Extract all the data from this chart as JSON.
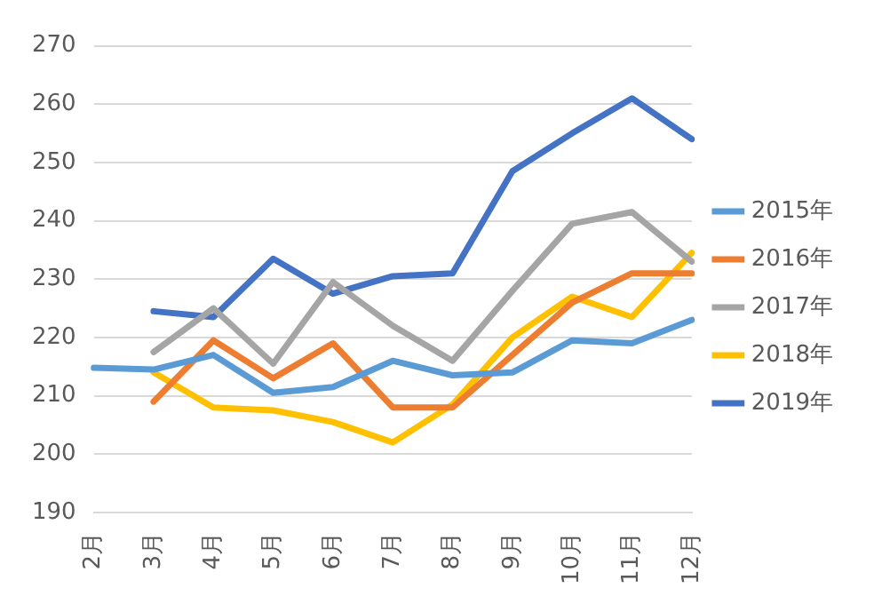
{
  "chart_data": {
    "type": "line",
    "categories": [
      "2月",
      "3月",
      "4月",
      "5月",
      "6月",
      "7月",
      "8月",
      "9月",
      "10月",
      "11月",
      "12月"
    ],
    "series": [
      {
        "name": "2015年",
        "color": "#5b9bd5",
        "values": [
          214.8,
          214.5,
          217,
          210.5,
          211.5,
          216,
          213.5,
          214,
          219.5,
          219,
          223
        ]
      },
      {
        "name": "2016年",
        "color": "#ed7d31",
        "values": [
          null,
          209,
          219.5,
          213,
          219,
          208,
          208,
          217,
          226,
          231,
          231
        ]
      },
      {
        "name": "2017年",
        "color": "#a5a5a5",
        "values": [
          null,
          217.5,
          225,
          215.5,
          229.5,
          222,
          216,
          228,
          239.5,
          241.5,
          233
        ]
      },
      {
        "name": "2018年",
        "color": "#ffc000",
        "values": [
          null,
          214,
          208,
          207.5,
          205.5,
          202,
          208.5,
          220,
          227,
          223.5,
          234.5
        ]
      },
      {
        "name": "2019年",
        "color": "#4472c4",
        "values": [
          null,
          224.5,
          223.5,
          233.5,
          227.5,
          230.5,
          231,
          248.5,
          255,
          261,
          254
        ]
      }
    ],
    "ylim": [
      190,
      270
    ],
    "yticks": [
      190,
      200,
      210,
      220,
      230,
      240,
      250,
      260,
      270
    ],
    "grid": "y",
    "legend": "right",
    "marker": "none",
    "line_style": "solid"
  }
}
